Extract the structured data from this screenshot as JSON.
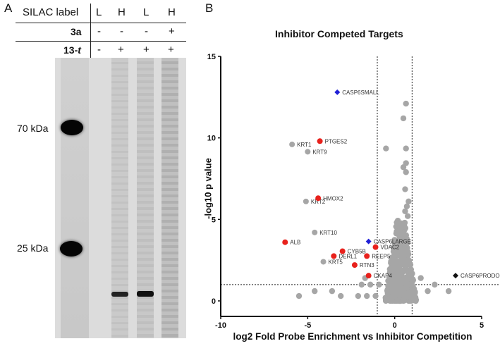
{
  "panel_a": {
    "letter": "A",
    "header": {
      "row_labels": [
        "SILAC label",
        "3a",
        "13-t"
      ],
      "columns": [
        {
          "silac": "L",
          "3a": "-",
          "13t": "-"
        },
        {
          "silac": "H",
          "3a": "-",
          "13t": "+"
        },
        {
          "silac": "L",
          "3a": "-",
          "13t": "+"
        },
        {
          "silac": "H",
          "3a": "+",
          "13t": "+"
        }
      ]
    },
    "markers": [
      {
        "label": "70 kDa"
      },
      {
        "label": "25 kDa"
      }
    ]
  },
  "panel_b": {
    "letter": "B"
  },
  "chart_data": {
    "type": "scatter",
    "title": "Inhibitor Competed Targets",
    "xlabel": "log2 Fold Probe Enrichment vs Inhibitor Competition",
    "ylabel": "-log10 p value",
    "xlim": [
      -10,
      5
    ],
    "ylim": [
      0,
      15
    ],
    "xticks": [
      "-10",
      "-5",
      "0",
      "5"
    ],
    "yticks": [
      "0",
      "5",
      "10",
      "15"
    ],
    "grid": false,
    "thresholds": {
      "x": [
        -1,
        1
      ],
      "y": 1
    },
    "colors": {
      "gray": "#a6a6a6",
      "red": "#e8211c",
      "blue": "#1f1fd6",
      "black": "#111111"
    },
    "labeled_points": [
      {
        "label": "CASP6SMALL",
        "x": -3.3,
        "y": 12.8,
        "color": "blue",
        "marker": "diamond"
      },
      {
        "label": "PTGES2",
        "x": -4.3,
        "y": 9.8,
        "color": "red",
        "marker": "circle"
      },
      {
        "label": "KRT1",
        "x": -5.9,
        "y": 9.6,
        "color": "gray",
        "marker": "circle"
      },
      {
        "label": "KRT9",
        "x": -5.0,
        "y": 9.15,
        "color": "gray",
        "marker": "circle"
      },
      {
        "label": "KRT2",
        "x": -5.1,
        "y": 6.1,
        "color": "gray",
        "marker": "circle"
      },
      {
        "label": "HMOX2",
        "x": -4.4,
        "y": 6.3,
        "color": "red",
        "marker": "circle"
      },
      {
        "label": "KRT10",
        "x": -4.6,
        "y": 4.2,
        "color": "gray",
        "marker": "circle"
      },
      {
        "label": "ALB",
        "x": -6.3,
        "y": 3.6,
        "color": "red",
        "marker": "circle"
      },
      {
        "label": "CASP6LARGE",
        "x": -1.5,
        "y": 3.65,
        "color": "blue",
        "marker": "diamond"
      },
      {
        "label": "VDAC2",
        "x": -1.1,
        "y": 3.3,
        "color": "red",
        "marker": "circle"
      },
      {
        "label": "CYB5B",
        "x": -3.0,
        "y": 3.05,
        "color": "red",
        "marker": "circle"
      },
      {
        "label": "DERL1",
        "x": -3.5,
        "y": 2.75,
        "color": "red",
        "marker": "circle"
      },
      {
        "label": "REEP5",
        "x": -1.6,
        "y": 2.75,
        "color": "red",
        "marker": "circle"
      },
      {
        "label": "KRT5",
        "x": -4.1,
        "y": 2.4,
        "color": "gray",
        "marker": "circle"
      },
      {
        "label": "RTN3",
        "x": -2.3,
        "y": 2.2,
        "color": "red",
        "marker": "circle"
      },
      {
        "label": "CKAP4",
        "x": -1.5,
        "y": 1.55,
        "color": "red",
        "marker": "circle"
      },
      {
        "label": "CASP6PRODO",
        "x": 3.5,
        "y": 1.55,
        "color": "black",
        "marker": "diamond"
      }
    ],
    "unlabeled_points": [
      {
        "x": 0.65,
        "y": 12.1
      },
      {
        "x": 0.5,
        "y": 11.2
      },
      {
        "x": -0.5,
        "y": 9.35
      },
      {
        "x": 0.65,
        "y": 9.35
      },
      {
        "x": 0.65,
        "y": 8.45
      },
      {
        "x": 0.5,
        "y": 8.2
      },
      {
        "x": 0.65,
        "y": 7.9
      },
      {
        "x": 0.6,
        "y": 6.85
      },
      {
        "x": 0.8,
        "y": 6.1
      },
      {
        "x": 0.7,
        "y": 5.8
      },
      {
        "x": 0.6,
        "y": 5.5
      },
      {
        "x": 0.75,
        "y": 5.2
      },
      {
        "x": -5.5,
        "y": 0.3
      },
      {
        "x": -4.6,
        "y": 0.6
      },
      {
        "x": -3.6,
        "y": 0.6
      },
      {
        "x": -3.1,
        "y": 0.3
      },
      {
        "x": -2.1,
        "y": 0.3
      },
      {
        "x": -1.6,
        "y": 0.3
      },
      {
        "x": -1.9,
        "y": 1.0
      },
      {
        "x": -1.7,
        "y": 1.4
      },
      {
        "x": -1.4,
        "y": 1.0
      },
      {
        "x": 1.9,
        "y": 0.6
      },
      {
        "x": 3.1,
        "y": 0.6
      },
      {
        "x": 2.3,
        "y": 1.0
      },
      {
        "x": 1.5,
        "y": 1.4
      },
      {
        "x": -1.1,
        "y": 0.3
      },
      {
        "x": -0.9,
        "y": 1.0
      }
    ],
    "dense_cluster": {
      "x_range": [
        -0.7,
        1.1
      ],
      "y_range": [
        0,
        5
      ],
      "color": "gray"
    }
  }
}
